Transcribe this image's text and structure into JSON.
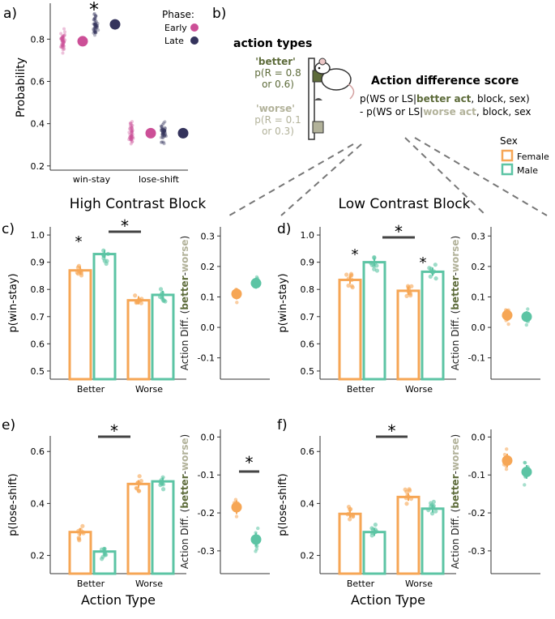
{
  "colors": {
    "early": "#cc4f97",
    "late": "#34335c",
    "female": "#f6a655",
    "male": "#5cc4a4",
    "better": "#5d6b3a",
    "worse": "#b2b29a",
    "axis": "#333333",
    "grid": "#555555"
  },
  "section_titles": {
    "high": "High Contrast Block",
    "low": "Low Contrast Block"
  },
  "chart_data": [
    {
      "panel": "a)",
      "type": "scatter",
      "ylabel": "Probability",
      "ylim": [
        0.18,
        0.97
      ],
      "yticks": [
        0.2,
        0.4,
        0.6,
        0.8
      ],
      "categories": [
        "win-stay",
        "lose-shift"
      ],
      "legend": {
        "title": "Phase:",
        "items": [
          "Early",
          "Late"
        ]
      },
      "series": [
        {
          "name": "Early",
          "values": [
            0.79,
            0.355
          ]
        },
        {
          "name": "Late",
          "values": [
            0.87,
            0.355
          ]
        }
      ],
      "annotations": [
        "*"
      ]
    },
    {
      "panel": "b)",
      "type": "diagram",
      "action_types_title": "action types",
      "better_label": "'better'",
      "better_prob": "p(R = 0.8",
      "better_prob2": "or 0.6)",
      "worse_label": "'worse'",
      "worse_prob": "p(R = 0.1",
      "worse_prob2": "or 0.3)",
      "score_title": "Action difference score",
      "formula1_a": "p(WS or LS|",
      "formula1_b": "better act",
      "formula1_c": ", block, sex)",
      "formula2_a": "- p(WS or LS|",
      "formula2_b": "worse act",
      "formula2_c": ", block, sex",
      "legend": {
        "title": "Sex",
        "items": [
          "Female",
          "Male"
        ]
      }
    },
    {
      "panel": "c)",
      "type": "bar",
      "ylabel": "p(win-stay)",
      "ylim": [
        0.47,
        1.03
      ],
      "yticks": [
        0.5,
        0.6,
        0.7,
        0.8,
        0.9,
        1.0
      ],
      "ytick_labels": [
        "0.5",
        "0.6",
        "0.7",
        "0.8",
        "0.9",
        "1.0"
      ],
      "categories": [
        "Better",
        "Worse"
      ],
      "series": [
        {
          "name": "Female",
          "values": [
            0.87,
            0.76
          ]
        },
        {
          "name": "Male",
          "values": [
            0.93,
            0.78
          ]
        }
      ],
      "annotations": [
        "*",
        "*"
      ]
    },
    {
      "panel": "c-diff",
      "type": "scatter",
      "ylabel_a": "Action Diff. (",
      "ylabel_b": "better",
      "ylabel_c": "-",
      "ylabel_d": "worse",
      "ylabel_e": ")",
      "ylim": [
        -0.17,
        0.33
      ],
      "yticks": [
        -0.1,
        0.0,
        0.1,
        0.2,
        0.3
      ],
      "ytick_labels": [
        "-0.1",
        "0.0",
        "0.1",
        "0.2",
        "0.3"
      ],
      "series": [
        {
          "name": "Female",
          "values": [
            0.11
          ]
        },
        {
          "name": "Male",
          "values": [
            0.145
          ]
        }
      ]
    },
    {
      "panel": "d)",
      "type": "bar",
      "ylabel": "p(win-stay)",
      "ylim": [
        0.47,
        1.03
      ],
      "yticks": [
        0.5,
        0.6,
        0.7,
        0.8,
        0.9,
        1.0
      ],
      "ytick_labels": [
        "0.5",
        "0.6",
        "0.7",
        "0.8",
        "0.9",
        "1.0"
      ],
      "categories": [
        "Better",
        "Worse"
      ],
      "series": [
        {
          "name": "Female",
          "values": [
            0.835,
            0.795
          ]
        },
        {
          "name": "Male",
          "values": [
            0.9,
            0.865
          ]
        }
      ],
      "annotations": [
        "*",
        "*",
        "*"
      ]
    },
    {
      "panel": "d-diff",
      "type": "scatter",
      "ylabel_a": "Action Diff. (",
      "ylabel_b": "better",
      "ylabel_c": "-",
      "ylabel_d": "worse",
      "ylabel_e": ")",
      "ylim": [
        -0.17,
        0.33
      ],
      "yticks": [
        -0.1,
        0.0,
        0.1,
        0.2,
        0.3
      ],
      "ytick_labels": [
        "-0.1",
        "0.0",
        "0.1",
        "0.2",
        "0.3"
      ],
      "series": [
        {
          "name": "Female",
          "values": [
            0.04
          ]
        },
        {
          "name": "Male",
          "values": [
            0.035
          ]
        }
      ]
    },
    {
      "panel": "e)",
      "type": "bar",
      "ylabel": "p(lose-shift)",
      "ylim": [
        0.13,
        0.66
      ],
      "yticks": [
        0.2,
        0.4,
        0.6
      ],
      "ytick_labels": [
        "0.2",
        "0.4",
        "0.6"
      ],
      "xlabel": "Action Type",
      "categories": [
        "Better",
        "Worse"
      ],
      "series": [
        {
          "name": "Female",
          "values": [
            0.29,
            0.475
          ]
        },
        {
          "name": "Male",
          "values": [
            0.215,
            0.485
          ]
        }
      ],
      "annotations": [
        "*"
      ]
    },
    {
      "panel": "e-diff",
      "type": "scatter",
      "ylabel_a": "Action Diff. (",
      "ylabel_b": "better",
      "ylabel_c": "-",
      "ylabel_d": "worse",
      "ylabel_e": ")",
      "ylim": [
        -0.36,
        0.02
      ],
      "yticks": [
        -0.3,
        -0.2,
        -0.1,
        0.0
      ],
      "ytick_labels": [
        "-0.3",
        "-0.2",
        "-0.1",
        "0.0"
      ],
      "series": [
        {
          "name": "Female",
          "values": [
            -0.185
          ]
        },
        {
          "name": "Male",
          "values": [
            -0.27
          ]
        }
      ],
      "annotations": [
        "*"
      ]
    },
    {
      "panel": "f)",
      "type": "bar",
      "ylabel": "p(lose-shift)",
      "ylim": [
        0.13,
        0.66
      ],
      "yticks": [
        0.2,
        0.4,
        0.6
      ],
      "ytick_labels": [
        "0.2",
        "0.4",
        "0.6"
      ],
      "xlabel": "Action Type",
      "categories": [
        "Better",
        "Worse"
      ],
      "series": [
        {
          "name": "Female",
          "values": [
            0.36,
            0.425
          ]
        },
        {
          "name": "Male",
          "values": [
            0.29,
            0.38
          ]
        }
      ],
      "annotations": [
        "*"
      ]
    },
    {
      "panel": "f-diff",
      "type": "scatter",
      "ylabel_a": "Action Diff. (",
      "ylabel_b": "better",
      "ylabel_c": "-",
      "ylabel_d": "worse",
      "ylabel_e": ")",
      "ylim": [
        -0.36,
        0.02
      ],
      "yticks": [
        -0.3,
        -0.2,
        -0.1,
        0.0
      ],
      "ytick_labels": [
        "-0.3",
        "-0.2",
        "-0.1",
        "0.0"
      ],
      "series": [
        {
          "name": "Female",
          "values": [
            -0.062
          ]
        },
        {
          "name": "Male",
          "values": [
            -0.092
          ]
        }
      ]
    }
  ]
}
